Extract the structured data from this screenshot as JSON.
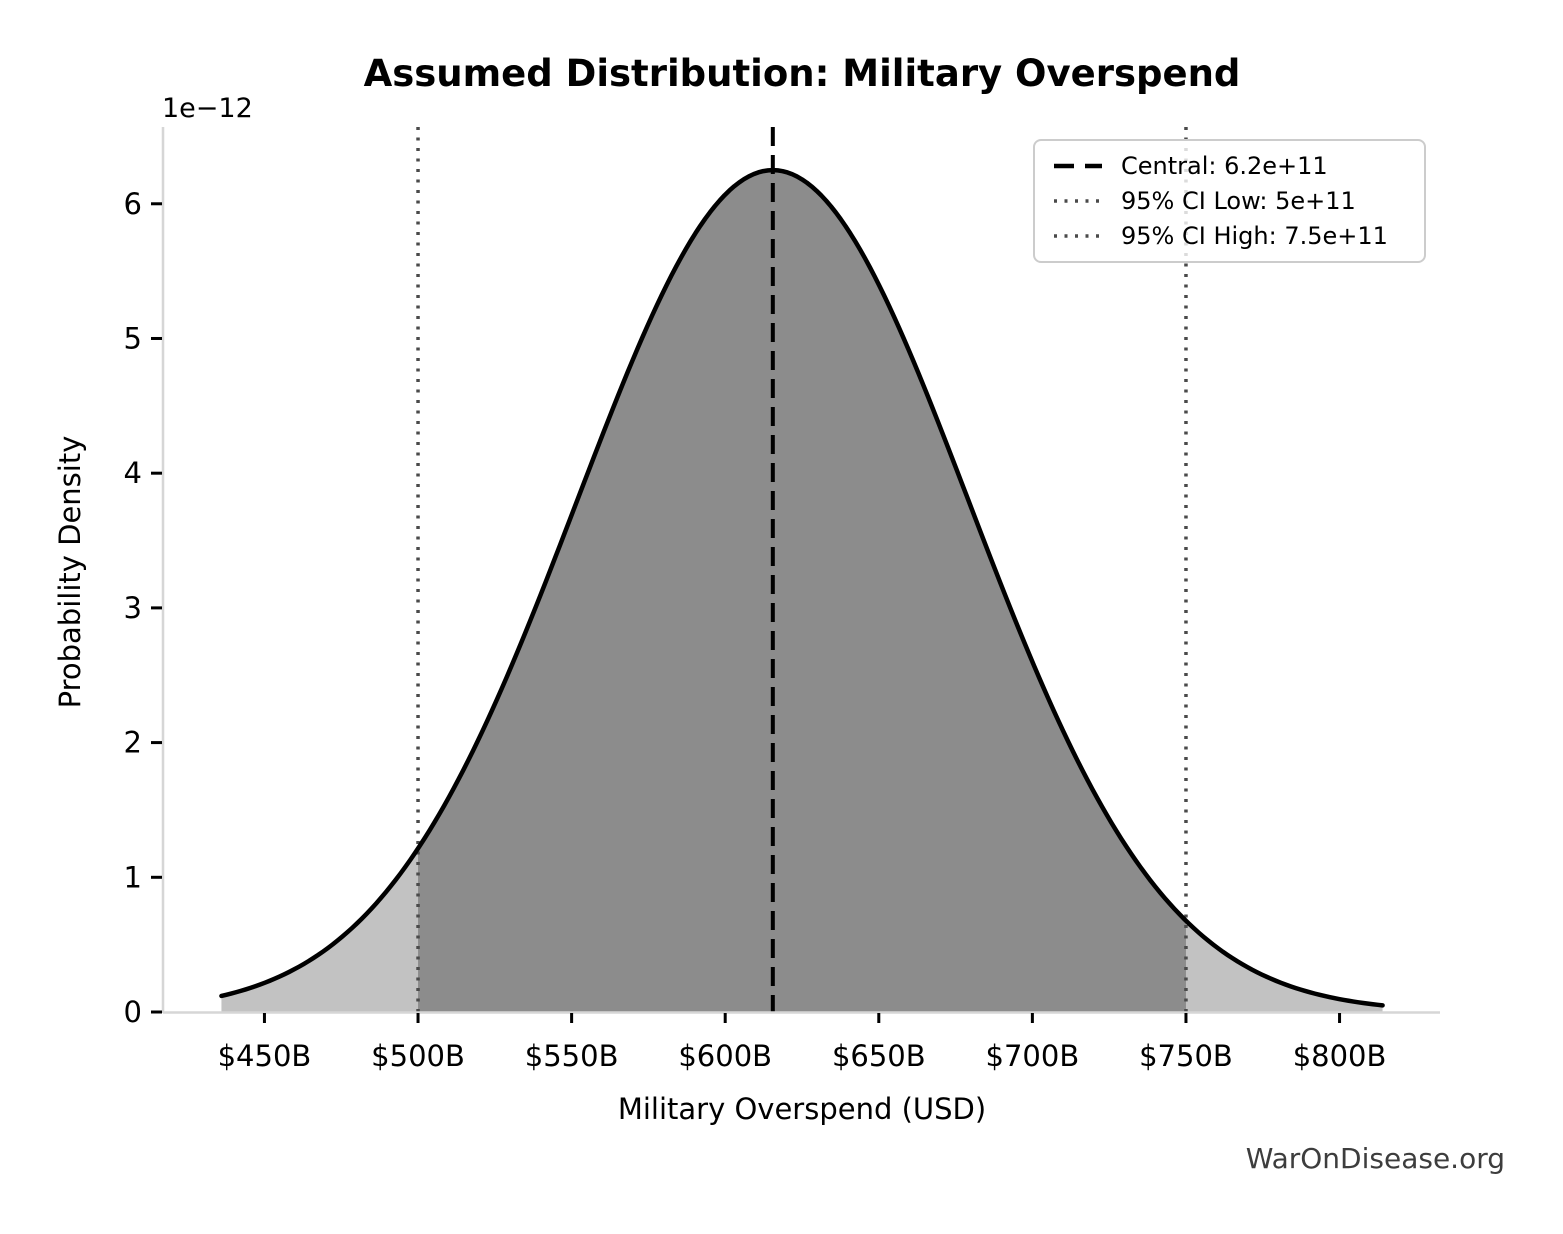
{
  "title": "Assumed Distribution: Military Overspend",
  "watermark": "WarOnDisease.org",
  "axes": {
    "xlabel": "Military Overspend (USD)",
    "ylabel": "Probability Density",
    "y_offset_label": "1e−12"
  },
  "legend": {
    "position": "upper right",
    "entries": [
      {
        "label": "Central: 6.2e+11",
        "line_style": "dashed"
      },
      {
        "label": "95% CI Low: 5e+11",
        "line_style": "dotted"
      },
      {
        "label": "95% CI High: 7.5e+11",
        "line_style": "dotted"
      }
    ]
  },
  "colors": {
    "curve": "#000000",
    "fill_ci": "#8c8c8c",
    "fill_tails": "#c2c2c2",
    "central_line": "#000000",
    "ci_line": "#4a4a4a",
    "spine": "#d6d6d6",
    "tick": "#000000",
    "text": "#000000",
    "watermark": "#3d3d3d",
    "legend_border": "#cccccc"
  },
  "chart_data": {
    "type": "area",
    "title": "Assumed Distribution: Military Overspend",
    "xlabel": "Military Overspend (USD)",
    "ylabel": "Probability Density",
    "y_scale_factor": "1e-12",
    "distribution": "bell-shaped probability density (normal-like)",
    "central": 620000000000.0,
    "ci_low_95": 500000000000.0,
    "ci_high_95": 750000000000.0,
    "sigma_estimate": 63800000000.0,
    "peak_x_estimate": 615500000000.0,
    "peak_density_estimate": 6.25e-12,
    "curve_x_start": 436000000000.0,
    "curve_x_end": 814000000000.0,
    "xlim": [
      417300000000.0,
      832700000000.0
    ],
    "ylim": [
      0,
      6.57e-12
    ],
    "grid": false,
    "legend_position": "upper right",
    "x_ticks": [
      {
        "value": 450000000000.0,
        "label": "$450B"
      },
      {
        "value": 500000000000.0,
        "label": "$500B"
      },
      {
        "value": 550000000000.0,
        "label": "$550B"
      },
      {
        "value": 600000000000.0,
        "label": "$600B"
      },
      {
        "value": 650000000000.0,
        "label": "$650B"
      },
      {
        "value": 700000000000.0,
        "label": "$700B"
      },
      {
        "value": 750000000000.0,
        "label": "$750B"
      },
      {
        "value": 800000000000.0,
        "label": "$800B"
      }
    ],
    "y_ticks": [
      {
        "value": 0,
        "label": "0"
      },
      {
        "value": 1e-12,
        "label": "1"
      },
      {
        "value": 2e-12,
        "label": "2"
      },
      {
        "value": 3e-12,
        "label": "3"
      },
      {
        "value": 4e-12,
        "label": "4"
      },
      {
        "value": 5e-12,
        "label": "5"
      },
      {
        "value": 6e-12,
        "label": "6"
      }
    ],
    "vlines": [
      {
        "x": 615500000000.0,
        "style": "dashed",
        "role": "central"
      },
      {
        "x": 500000000000.0,
        "style": "dotted",
        "role": "ci-low"
      },
      {
        "x": 750000000000.0,
        "style": "dotted",
        "role": "ci-high"
      }
    ]
  }
}
